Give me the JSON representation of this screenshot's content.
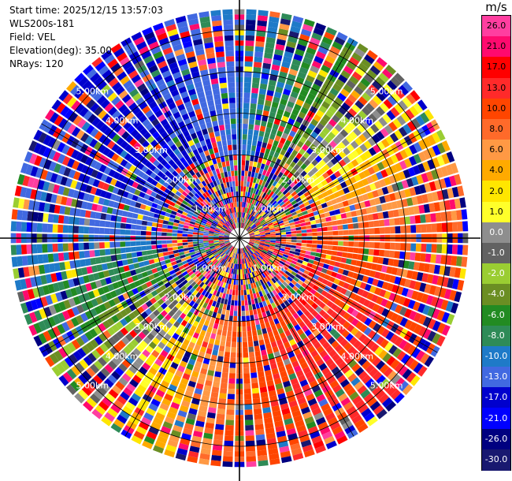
{
  "info": {
    "start_time": "Start time: 2025/12/15 13:57:03",
    "station": "WLS200s-181",
    "field": "Field: VEL",
    "elevation": "Elevation(deg): 35.00",
    "nrays": "NRays: 120"
  },
  "colorbar": {
    "unit": "m/s",
    "ticks": [
      "26.0",
      "21.0",
      "17.0",
      "13.0",
      "10.0",
      "8.0",
      "6.0",
      "4.0",
      "2.0",
      "1.0",
      "0.0",
      "-1.0",
      "-2.0",
      "-4.0",
      "-6.0",
      "-8.0",
      "-10.0",
      "-13.0",
      "-17.0",
      "-21.0",
      "-26.0",
      "-30.0"
    ],
    "colors": [
      "#ff3ea0",
      "#ff0a6e",
      "#ff0000",
      "#ff2a2a",
      "#ff4500",
      "#ff6a2a",
      "#ff9944",
      "#ffaa00",
      "#ffe600",
      "#ffff2a",
      "#8e8e8e",
      "#626262",
      "#9acd32",
      "#6b8e23",
      "#228b22",
      "#2e8b57",
      "#1e7ac8",
      "#4169e1",
      "#0000cd",
      "#0000ff",
      "#000080",
      "#191970"
    ]
  },
  "chart_data": {
    "type": "ppi",
    "field": "VEL",
    "units": "m/s",
    "elevation_deg": 35.0,
    "nrays": 120,
    "range_rings_km": [
      1.0,
      2.0,
      3.0,
      4.0,
      5.0
    ],
    "range_ring_labels": [
      "1.00km",
      "2.00km",
      "3.00km",
      "4.00km",
      "5.00km"
    ],
    "max_range_km": 5.5,
    "color_levels_mps": [
      26.0,
      21.0,
      17.0,
      13.0,
      10.0,
      8.0,
      6.0,
      4.0,
      2.0,
      1.0,
      0.0,
      -1.0,
      -2.0,
      -4.0,
      -6.0,
      -8.0,
      -10.0,
      -13.0,
      -17.0,
      -21.0,
      -26.0,
      -30.0
    ]
  }
}
